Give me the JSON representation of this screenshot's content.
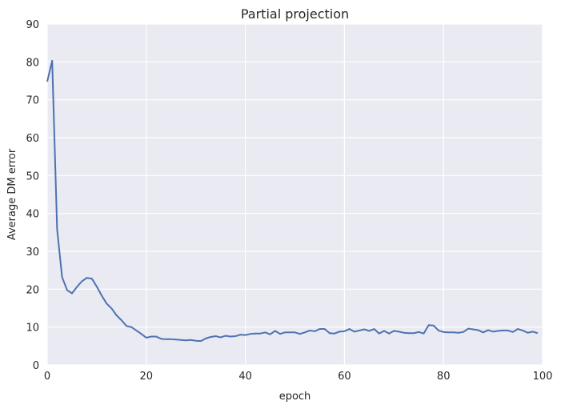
{
  "chart_data": {
    "type": "line",
    "title": "Partial projection",
    "xlabel": "epoch",
    "ylabel": "Average DM error",
    "xlim": [
      0,
      100
    ],
    "ylim": [
      0,
      90
    ],
    "xticks": [
      0,
      20,
      40,
      60,
      80,
      100
    ],
    "yticks": [
      0,
      10,
      20,
      30,
      40,
      50,
      60,
      70,
      80,
      90
    ],
    "grid": true,
    "background_color": "#EAEAF2",
    "grid_color": "#FFFFFF",
    "series": [
      {
        "color": "#4C72B0",
        "x": [
          0,
          1,
          2,
          3,
          4,
          5,
          6,
          7,
          8,
          9,
          10,
          11,
          12,
          13,
          14,
          15,
          16,
          17,
          18,
          19,
          20,
          21,
          22,
          23,
          24,
          25,
          26,
          27,
          28,
          29,
          30,
          31,
          32,
          33,
          34,
          35,
          36,
          37,
          38,
          39,
          40,
          41,
          42,
          43,
          44,
          45,
          46,
          47,
          48,
          49,
          50,
          51,
          52,
          53,
          54,
          55,
          56,
          57,
          58,
          59,
          60,
          61,
          62,
          63,
          64,
          65,
          66,
          67,
          68,
          69,
          70,
          71,
          72,
          73,
          74,
          75,
          76,
          77,
          78,
          79,
          80,
          81,
          82,
          83,
          84,
          85,
          86,
          87,
          88,
          89,
          90,
          91,
          92,
          93,
          94,
          95,
          96,
          97,
          98,
          99
        ],
        "y": [
          74.8,
          80.3,
          35.8,
          23.2,
          19.8,
          18.9,
          20.6,
          22.1,
          23.0,
          22.8,
          20.7,
          18.3,
          16.2,
          14.9,
          13.1,
          11.8,
          10.3,
          10.0,
          9.1,
          8.2,
          7.2,
          7.5,
          7.5,
          6.9,
          6.8,
          6.8,
          6.7,
          6.6,
          6.5,
          6.6,
          6.4,
          6.3,
          7.0,
          7.4,
          7.6,
          7.3,
          7.7,
          7.5,
          7.6,
          8.0,
          7.9,
          8.2,
          8.3,
          8.3,
          8.6,
          8.1,
          9.0,
          8.2,
          8.6,
          8.6,
          8.6,
          8.2,
          8.6,
          9.1,
          8.9,
          9.5,
          9.5,
          8.4,
          8.3,
          8.8,
          8.9,
          9.5,
          8.8,
          9.1,
          9.4,
          9.0,
          9.5,
          8.3,
          9.0,
          8.3,
          9.0,
          8.8,
          8.5,
          8.4,
          8.4,
          8.7,
          8.3,
          10.5,
          10.4,
          9.1,
          8.7,
          8.6,
          8.6,
          8.5,
          8.7,
          9.6,
          9.4,
          9.2,
          8.6,
          9.2,
          8.8,
          9.0,
          9.1,
          9.1,
          8.7,
          9.5,
          9.1,
          8.5,
          8.8,
          8.4
        ]
      }
    ]
  }
}
